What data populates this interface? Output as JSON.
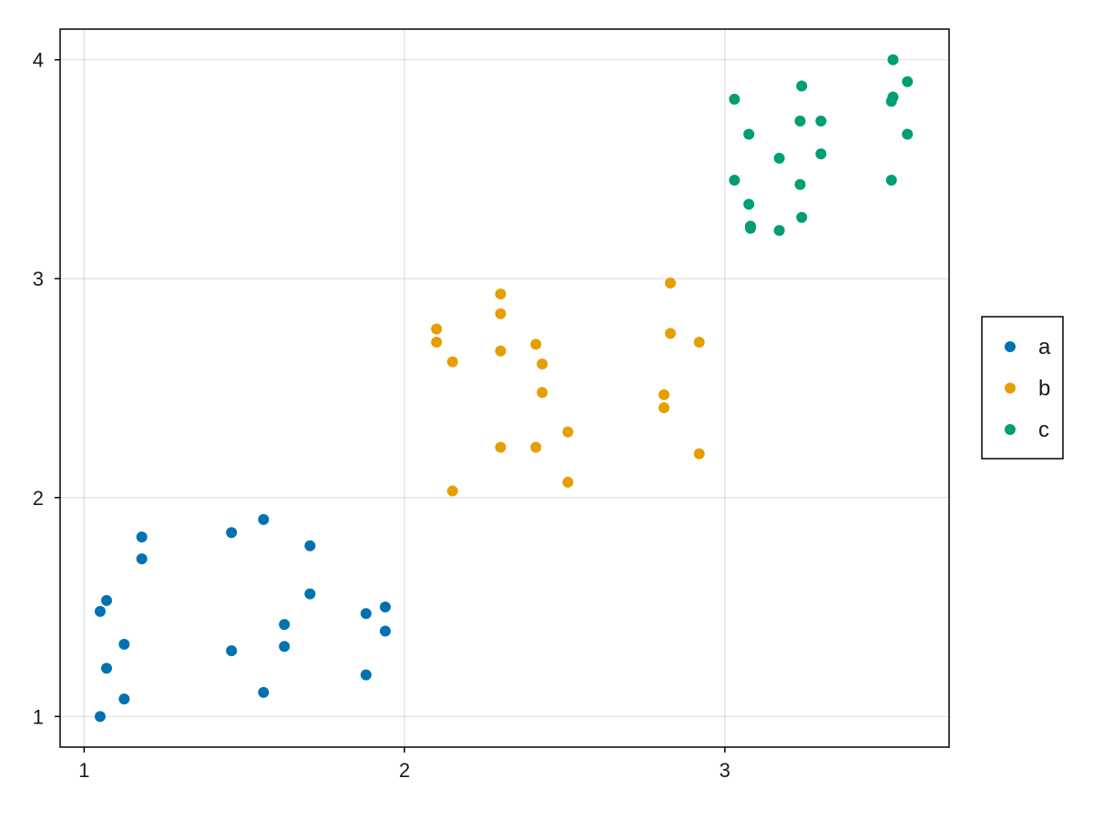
{
  "chart_data": {
    "type": "scatter",
    "title": "",
    "xlabel": "",
    "ylabel": "",
    "xlim": [
      0.925,
      3.7
    ],
    "ylim": [
      0.86,
      4.14
    ],
    "xticks": [
      1,
      2,
      3
    ],
    "yticks": [
      1,
      2,
      3,
      4
    ],
    "grid": true,
    "legend_position": "right",
    "series": [
      {
        "name": "a",
        "color": "#0072b2",
        "points": [
          [
            1.05,
            1.0
          ],
          [
            1.05,
            1.48
          ],
          [
            1.07,
            1.22
          ],
          [
            1.07,
            1.53
          ],
          [
            1.125,
            1.08
          ],
          [
            1.125,
            1.33
          ],
          [
            1.18,
            1.72
          ],
          [
            1.18,
            1.82
          ],
          [
            1.46,
            1.3
          ],
          [
            1.46,
            1.84
          ],
          [
            1.56,
            1.11
          ],
          [
            1.56,
            1.9
          ],
          [
            1.625,
            1.32
          ],
          [
            1.625,
            1.42
          ],
          [
            1.705,
            1.56
          ],
          [
            1.705,
            1.78
          ],
          [
            1.88,
            1.19
          ],
          [
            1.88,
            1.47
          ],
          [
            1.94,
            1.39
          ],
          [
            1.94,
            1.5
          ]
        ]
      },
      {
        "name": "b",
        "color": "#e69f00",
        "points": [
          [
            2.1,
            2.71
          ],
          [
            2.1,
            2.77
          ],
          [
            2.15,
            2.03
          ],
          [
            2.15,
            2.62
          ],
          [
            2.3,
            2.23
          ],
          [
            2.3,
            2.67
          ],
          [
            2.3,
            2.84
          ],
          [
            2.3,
            2.93
          ],
          [
            2.41,
            2.23
          ],
          [
            2.41,
            2.7
          ],
          [
            2.43,
            2.48
          ],
          [
            2.43,
            2.61
          ],
          [
            2.51,
            2.07
          ],
          [
            2.51,
            2.3
          ],
          [
            2.81,
            2.41
          ],
          [
            2.81,
            2.47
          ],
          [
            2.83,
            2.75
          ],
          [
            2.83,
            2.98
          ],
          [
            2.92,
            2.2
          ],
          [
            2.92,
            2.71
          ]
        ]
      },
      {
        "name": "c",
        "color": "#009e73",
        "points": [
          [
            3.03,
            3.45
          ],
          [
            3.03,
            3.82
          ],
          [
            3.075,
            3.34
          ],
          [
            3.075,
            3.66
          ],
          [
            3.08,
            3.23
          ],
          [
            3.08,
            3.24
          ],
          [
            3.17,
            3.22
          ],
          [
            3.17,
            3.55
          ],
          [
            3.235,
            3.43
          ],
          [
            3.235,
            3.72
          ],
          [
            3.24,
            3.28
          ],
          [
            3.24,
            3.88
          ],
          [
            3.3,
            3.57
          ],
          [
            3.3,
            3.72
          ],
          [
            3.52,
            3.45
          ],
          [
            3.52,
            3.81
          ],
          [
            3.525,
            3.83
          ],
          [
            3.525,
            4.0
          ],
          [
            3.57,
            3.66
          ],
          [
            3.57,
            3.9
          ]
        ]
      }
    ]
  }
}
